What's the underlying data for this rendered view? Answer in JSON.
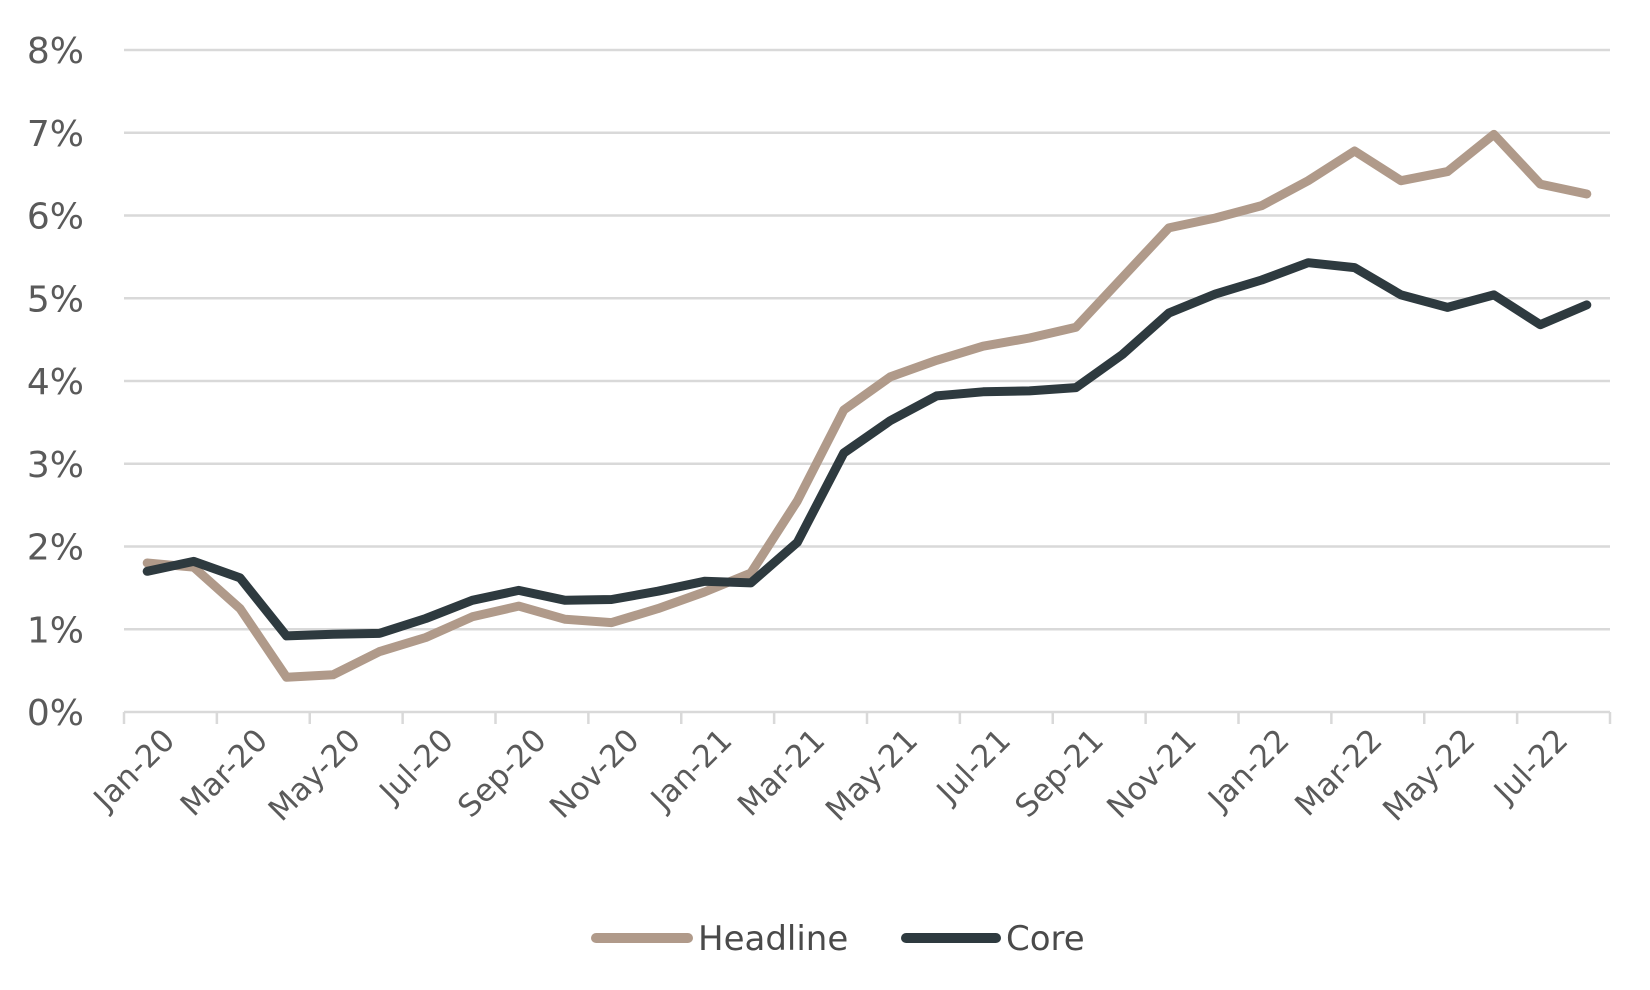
{
  "chart_data": {
    "type": "line",
    "title": "",
    "xlabel": "",
    "ylabel": "",
    "ylim": [
      0,
      8
    ],
    "y_ticks": [
      0,
      1,
      2,
      3,
      4,
      5,
      6,
      7,
      8
    ],
    "y_tick_labels": [
      "0%",
      "1%",
      "2%",
      "3%",
      "4%",
      "5%",
      "6%",
      "7%",
      "8%"
    ],
    "x": [
      "Jan-20",
      "Feb-20",
      "Mar-20",
      "Apr-20",
      "May-20",
      "Jun-20",
      "Jul-20",
      "Aug-20",
      "Sep-20",
      "Oct-20",
      "Nov-20",
      "Dec-20",
      "Jan-21",
      "Feb-21",
      "Mar-21",
      "Apr-21",
      "May-21",
      "Jun-21",
      "Jul-21",
      "Aug-21",
      "Sep-21",
      "Oct-21",
      "Nov-21",
      "Dec-21",
      "Jan-22",
      "Feb-22",
      "Mar-22",
      "Apr-22",
      "May-22",
      "Jun-22",
      "Jul-22",
      "Aug-22"
    ],
    "x_tick_labels": [
      "Jan-20",
      "Mar-20",
      "May-20",
      "Jul-20",
      "Sep-20",
      "Nov-20",
      "Jan-21",
      "Mar-21",
      "May-21",
      "Jul-21",
      "Sep-21",
      "Nov-21",
      "Jan-22",
      "Mar-22",
      "May-22",
      "Jul-22"
    ],
    "grid": true,
    "legend_position": "bottom",
    "series": [
      {
        "name": "Headline",
        "color": "#b09a8a",
        "values": [
          1.8,
          1.75,
          1.25,
          0.42,
          0.45,
          0.73,
          0.9,
          1.15,
          1.28,
          1.12,
          1.08,
          1.25,
          1.45,
          1.68,
          2.55,
          3.65,
          4.05,
          4.25,
          4.42,
          4.52,
          4.65,
          5.25,
          5.85,
          5.97,
          6.12,
          6.42,
          6.78,
          6.42,
          6.53,
          6.98,
          6.38,
          6.26
        ]
      },
      {
        "name": "Core",
        "color": "#2e3a3f",
        "values": [
          1.7,
          1.82,
          1.62,
          0.92,
          0.94,
          0.95,
          1.13,
          1.35,
          1.47,
          1.35,
          1.36,
          1.46,
          1.58,
          1.56,
          2.05,
          3.13,
          3.52,
          3.82,
          3.87,
          3.88,
          3.92,
          4.32,
          4.82,
          5.05,
          5.22,
          5.43,
          5.37,
          5.04,
          4.89,
          5.04,
          4.68,
          4.92
        ]
      }
    ]
  }
}
